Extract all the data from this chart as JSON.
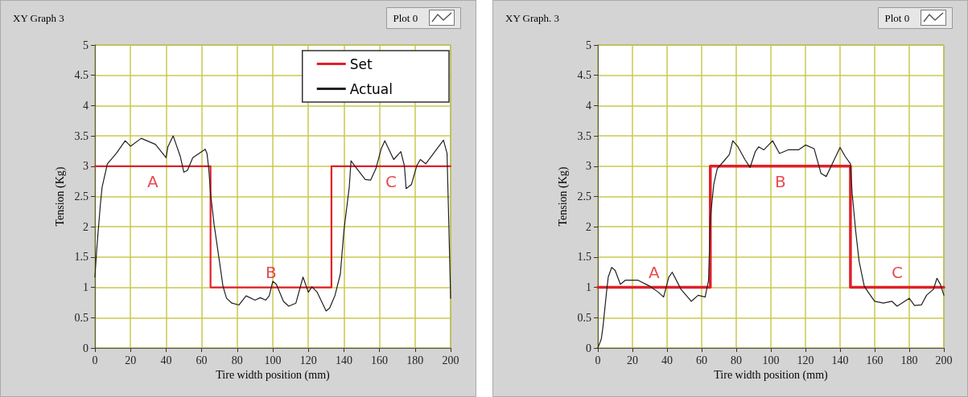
{
  "chart_data": [
    {
      "type": "line",
      "title": "XY Graph 3",
      "xlabel": "Tire width position (mm)",
      "ylabel": "Tension (Kg)",
      "xlim": [
        0,
        200
      ],
      "xticks": [
        0,
        20,
        40,
        60,
        80,
        100,
        120,
        140,
        160,
        180,
        200
      ],
      "ylim": [
        0,
        5
      ],
      "yticks": [
        0,
        0.5,
        1,
        1.5,
        2,
        2.5,
        3,
        3.5,
        4,
        4.5,
        5
      ],
      "grid": true,
      "legend": "top right",
      "marker": "none",
      "line_style": "solid",
      "series": [
        {
          "name": "Set",
          "color": "#e02028",
          "x": [
            0,
            65,
            65,
            133,
            133,
            200
          ],
          "values": [
            3,
            3,
            1,
            1,
            3,
            3
          ]
        },
        {
          "name": "Actual",
          "color": "#202020",
          "x": [
            0,
            1,
            3,
            4,
            7,
            12,
            17,
            20,
            26,
            34,
            40,
            41,
            44,
            48,
            50,
            52,
            55,
            62,
            63,
            64,
            65,
            67,
            70,
            72,
            74,
            77,
            81,
            85,
            90,
            93,
            96,
            98,
            100,
            102,
            106,
            109,
            113,
            117,
            120,
            122,
            125,
            130,
            132,
            135,
            138,
            140,
            143,
            144,
            146,
            152,
            155,
            158,
            161,
            163,
            168,
            172,
            174,
            175,
            178,
            181,
            183,
            186,
            196,
            198,
            199,
            200
          ],
          "values": [
            1.17,
            1.63,
            2.35,
            2.65,
            3.04,
            3.21,
            3.42,
            3.33,
            3.46,
            3.36,
            3.14,
            3.32,
            3.5,
            3.16,
            2.9,
            2.93,
            3.14,
            3.28,
            3.21,
            2.96,
            2.55,
            2.04,
            1.43,
            1.02,
            0.82,
            0.74,
            0.71,
            0.86,
            0.79,
            0.83,
            0.79,
            0.86,
            1.1,
            1.05,
            0.77,
            0.69,
            0.74,
            1.17,
            0.92,
            1.01,
            0.92,
            0.61,
            0.66,
            0.87,
            1.22,
            1.94,
            2.65,
            3.09,
            3.01,
            2.78,
            2.77,
            2.96,
            3.29,
            3.42,
            3.11,
            3.24,
            3.01,
            2.63,
            2.7,
            3.01,
            3.11,
            3.04,
            3.43,
            3.21,
            2.04,
            0.82
          ]
        }
      ],
      "annotations": [
        "Plot 0",
        "A",
        "B",
        "C"
      ]
    },
    {
      "type": "line",
      "title": "XY Graph. 3",
      "xlabel": "Tire width position (mm)",
      "ylabel": "Tension (Kg)",
      "xlim": [
        0,
        200
      ],
      "xticks": [
        0,
        20,
        40,
        60,
        80,
        100,
        120,
        140,
        160,
        180,
        200
      ],
      "ylim": [
        0,
        5
      ],
      "yticks": [
        0,
        0.5,
        1,
        1.5,
        2,
        2.5,
        3,
        3.5,
        4,
        4.5,
        5
      ],
      "grid": true,
      "legend": false,
      "marker": "none",
      "line_style": "solid",
      "series": [
        {
          "color": "#e02028",
          "x": [
            0,
            65,
            65,
            146,
            146,
            200
          ],
          "values": [
            1,
            1,
            3,
            3,
            1,
            1
          ]
        },
        {
          "color": "#202020",
          "x": [
            0,
            2,
            3,
            5,
            6,
            8,
            10,
            13,
            16,
            23,
            30,
            35,
            38,
            41,
            43,
            48,
            54,
            58,
            62,
            64,
            65,
            67,
            69,
            73,
            76,
            78,
            81,
            85,
            88,
            91,
            93,
            96,
            101,
            105,
            110,
            116,
            120,
            125,
            129,
            132,
            135,
            140,
            143,
            146,
            147,
            149,
            151,
            154,
            157,
            160,
            165,
            170,
            173,
            180,
            183,
            187,
            190,
            194,
            196,
            198,
            200
          ],
          "values": [
            0,
            0.15,
            0.36,
            0.92,
            1.17,
            1.33,
            1.28,
            1.05,
            1.12,
            1.12,
            1.02,
            0.92,
            0.84,
            1.17,
            1.25,
            0.97,
            0.77,
            0.87,
            0.84,
            1.12,
            2.14,
            2.7,
            2.96,
            3.09,
            3.19,
            3.42,
            3.32,
            3.11,
            2.98,
            3.24,
            3.32,
            3.27,
            3.42,
            3.21,
            3.27,
            3.27,
            3.35,
            3.29,
            2.88,
            2.83,
            3.01,
            3.31,
            3.16,
            3.04,
            2.55,
            1.94,
            1.43,
            1.02,
            0.89,
            0.77,
            0.74,
            0.77,
            0.69,
            0.82,
            0.7,
            0.71,
            0.87,
            0.97,
            1.15,
            1.05,
            0.87
          ]
        }
      ],
      "annotations": [
        "Plot 0",
        "A",
        "B",
        "C"
      ]
    }
  ]
}
